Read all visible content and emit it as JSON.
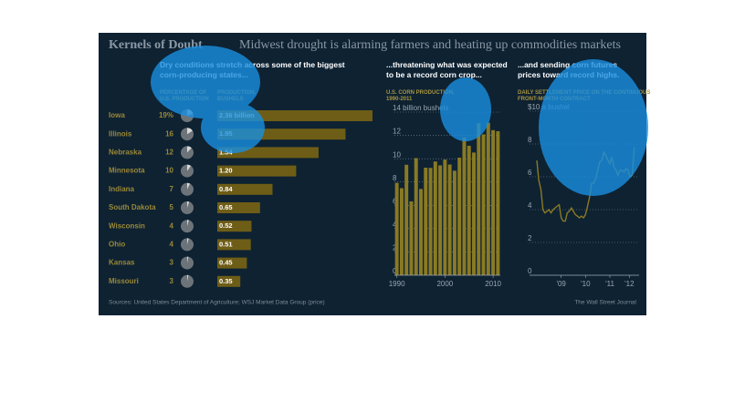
{
  "header": {
    "title": "Kernels of Doubt",
    "subtitle": "Midwest drought is alarming farmers and heating up commodities markets"
  },
  "footer": {
    "source": "Sources: United States Department of Agriculture; WSJ Market Data Group (price)",
    "credit": "The Wall Street Journal"
  },
  "chart_data": [
    {
      "type": "bar",
      "orientation": "horizontal",
      "title": "Dry conditions stretch across some of the biggest corn-producing states...",
      "categories": [
        "Iowa",
        "Illinois",
        "Nebraska",
        "Minnesota",
        "Indiana",
        "South Dakota",
        "Wisconsin",
        "Ohio",
        "Kansas",
        "Missouri"
      ],
      "series": [
        {
          "name": "PERCENTAGE OF U.S. PRODUCTION",
          "mark": "pie",
          "color": "#d8d8d8",
          "values": [
            19,
            16,
            12,
            10,
            7,
            5,
            4,
            4,
            3,
            3
          ],
          "value_labels": [
            "19%",
            "16",
            "12",
            "10",
            "7",
            "5",
            "4",
            "4",
            "3",
            "3"
          ]
        },
        {
          "name": "PRODUCTION, BUSHELS",
          "mark": "bar",
          "color": "#6e5d16",
          "values": [
            2.36,
            1.95,
            1.54,
            1.2,
            0.84,
            0.65,
            0.52,
            0.51,
            0.45,
            0.35
          ],
          "value_labels": [
            "2.36 billion",
            "1.95",
            "1.54",
            "1.20",
            "0.84",
            "0.65",
            "0.52",
            "0.51",
            "0.45",
            "0.35"
          ]
        }
      ]
    },
    {
      "type": "bar",
      "title": "...threatening what was expected to be a record corn crop...",
      "subtitle": "U.S. CORN PRODUCTION, 1990-2011",
      "x": [
        1990,
        1991,
        1992,
        1993,
        1994,
        1995,
        1996,
        1997,
        1998,
        1999,
        2000,
        2001,
        2002,
        2003,
        2004,
        2005,
        2006,
        2007,
        2008,
        2009,
        2010,
        2011
      ],
      "values": [
        7.93,
        7.47,
        9.48,
        6.34,
        10.05,
        7.4,
        9.23,
        9.21,
        9.76,
        9.43,
        9.92,
        9.5,
        8.97,
        10.09,
        11.81,
        11.11,
        10.53,
        13.04,
        12.09,
        13.09,
        12.45,
        12.36
      ],
      "color": "#8a7a24",
      "xlim": [
        1989.5,
        2011.5
      ],
      "xticks": [
        1990,
        2000,
        2010
      ],
      "ylim": [
        0,
        14
      ],
      "yticks": [
        0,
        2,
        4,
        6,
        8,
        10,
        12,
        {
          "value": 14,
          "label": "14 billion bushels"
        }
      ],
      "grid": true
    },
    {
      "type": "line",
      "title": "...and sending corn futures prices toward record highs.",
      "subtitle": "DAILY SETTLEMENT PRICE ON THE CONTINUOUS FRONT-MONTH CONTRACT",
      "x": [
        2008.5,
        2008.58,
        2008.67,
        2008.75,
        2008.83,
        2008.92,
        2009,
        2009.08,
        2009.17,
        2009.25,
        2009.33,
        2009.42,
        2009.5,
        2009.58,
        2009.67,
        2009.75,
        2009.83,
        2009.92,
        2010,
        2010.08,
        2010.17,
        2010.25,
        2010.33,
        2010.42,
        2010.5,
        2010.58,
        2010.67,
        2010.75,
        2010.83,
        2010.92,
        2011,
        2011.08,
        2011.17,
        2011.25,
        2011.33,
        2011.42,
        2011.5,
        2011.58,
        2011.67,
        2011.75,
        2011.83,
        2011.92,
        2012,
        2012.08,
        2012.17,
        2012.25,
        2012.33,
        2012.42,
        2012.5
      ],
      "values": [
        7.0,
        5.8,
        5.2,
        4.0,
        3.8,
        3.9,
        4.0,
        3.8,
        4.0,
        4.1,
        4.2,
        4.3,
        3.5,
        3.3,
        3.3,
        3.8,
        3.9,
        4.1,
        3.9,
        3.7,
        3.6,
        3.5,
        3.6,
        3.5,
        3.7,
        4.2,
        4.8,
        5.6,
        5.6,
        5.9,
        6.4,
        6.9,
        7.0,
        7.5,
        7.3,
        7.0,
        6.8,
        7.2,
        6.6,
        6.4,
        6.1,
        6.4,
        6.4,
        6.3,
        6.5,
        6.4,
        6.0,
        6.1,
        7.8
      ],
      "color": "#8a7a24",
      "xlim": [
        2008.2,
        2012.7
      ],
      "xticks": [
        {
          "value": 2009.5,
          "label": "'09"
        },
        {
          "value": 2010.5,
          "label": "'10"
        },
        {
          "value": 2011.5,
          "label": "'11"
        },
        {
          "value": 2012.3,
          "label": "'12"
        }
      ],
      "ylim": [
        0,
        10
      ],
      "yticks": [
        0,
        2,
        4,
        6,
        8,
        {
          "value": 10,
          "label": "$10 a bushel"
        }
      ],
      "grid": true
    }
  ]
}
